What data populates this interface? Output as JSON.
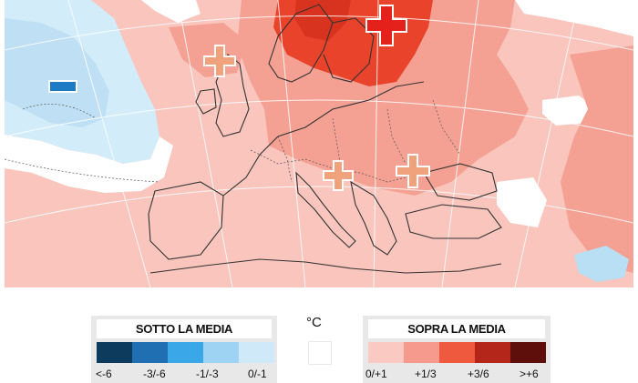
{
  "legend": {
    "below_title": "SOTTO LA MEDIA",
    "above_title": "SOPRA LA MEDIA",
    "unit": "°C",
    "below_classes": [
      {
        "label": "<-6",
        "color": "#0d3b5e"
      },
      {
        "label": "-3/-6",
        "color": "#1f6fb2"
      },
      {
        "label": "-1/-3",
        "color": "#3aa8e8"
      },
      {
        "label": "0/-1",
        "color": "#9fd3f3"
      },
      {
        "label": "",
        "color": "#cfe9f8"
      }
    ],
    "neutral_color": "#ffffff",
    "above_classes": [
      {
        "label": "0/+1",
        "color": "#f9c9c2"
      },
      {
        "label": "+1/3",
        "color": "#f59a8c"
      },
      {
        "label": "+3/6",
        "color": "#ef5a3f"
      },
      {
        "label": ">+6",
        "color": "#b5261a"
      },
      {
        "label": "",
        "color": "#5e0f0c"
      }
    ]
  },
  "map": {
    "colors": {
      "base_warm": "#f9c5bd",
      "warm_medium": "#f4a193",
      "warm_strong": "#e9442b",
      "warm_very_strong": "#d8331e",
      "cool_light": "#d2ecf9",
      "neutral": "#ffffff",
      "marker_plus_light": "#f0a27d",
      "marker_plus_strong": "#e5211c",
      "marker_minus": "#1d7bc4",
      "coastline": "#333333",
      "grid": "#ffffff"
    },
    "markers": [
      {
        "type": "plus-strong",
        "name": "scandinavia-russia"
      },
      {
        "type": "plus",
        "name": "british-isles"
      },
      {
        "type": "plus",
        "name": "italy"
      },
      {
        "type": "plus",
        "name": "balkans"
      },
      {
        "type": "minus",
        "name": "north-atlantic"
      }
    ]
  }
}
